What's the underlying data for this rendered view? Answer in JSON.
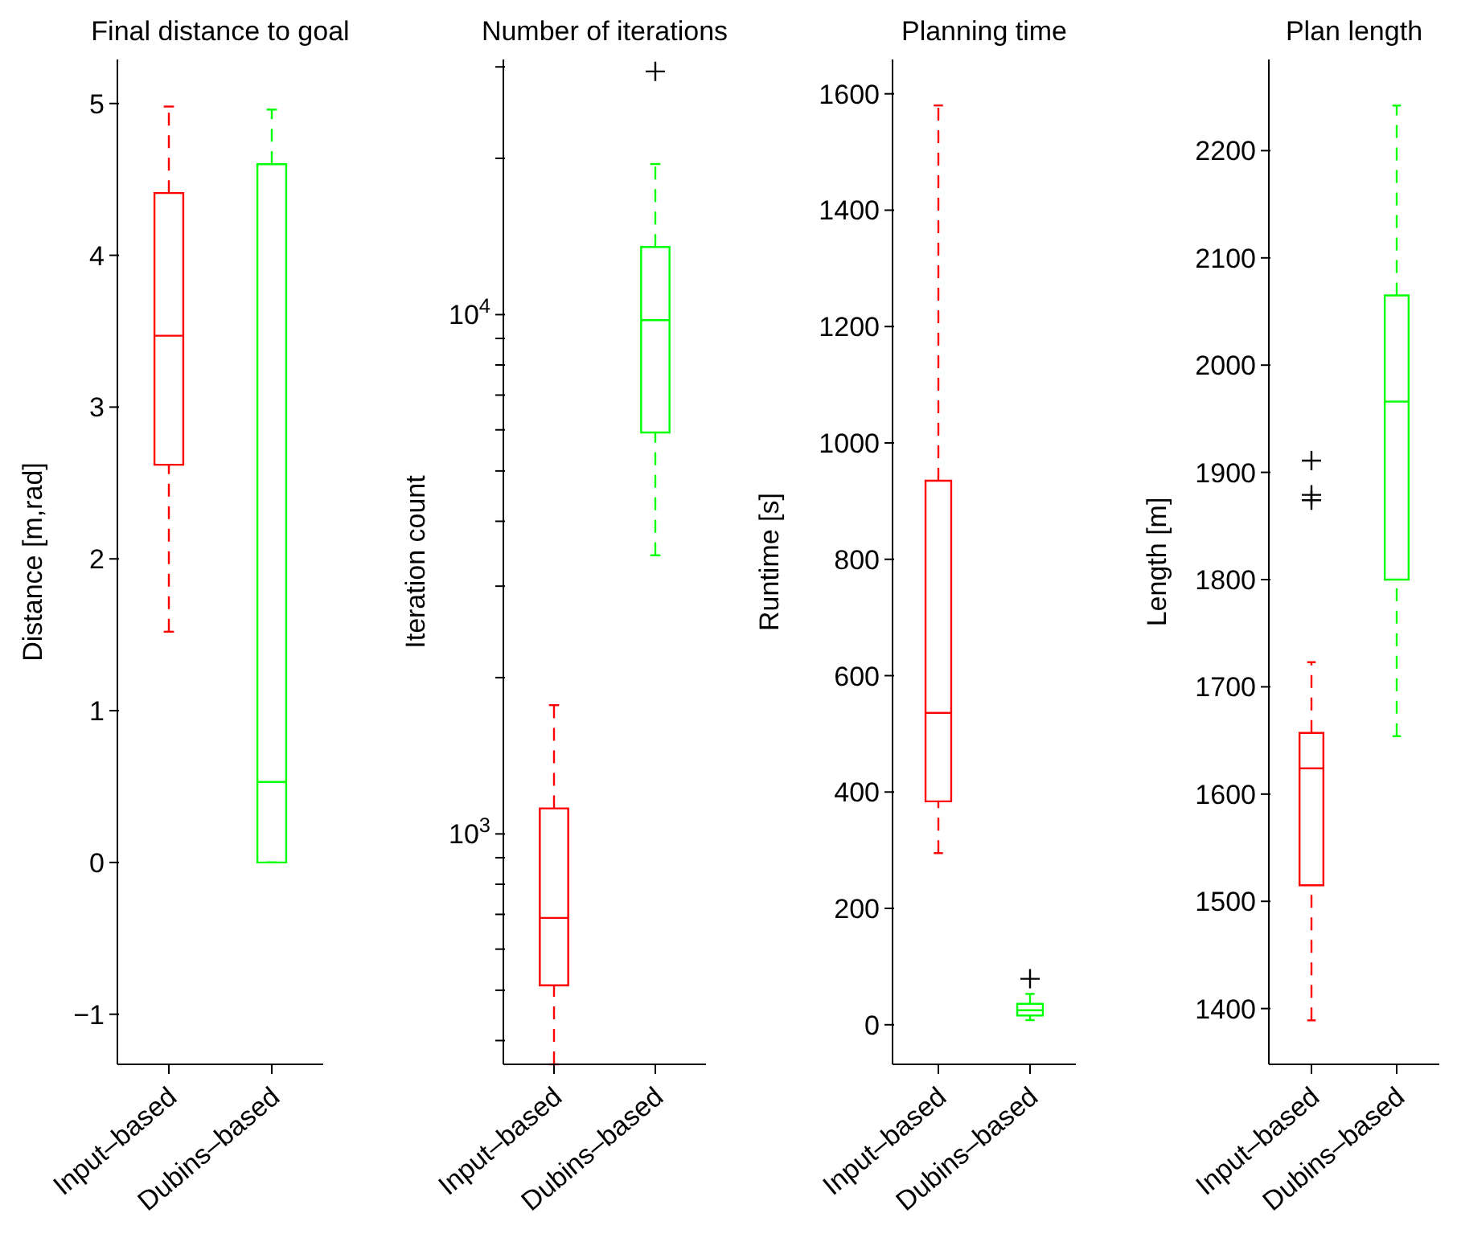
{
  "chart_data": [
    {
      "type": "box",
      "title": "Final distance to goal",
      "ylabel": "Distance [m,rad]",
      "categories": [
        "Input–based",
        "Dubins–based"
      ],
      "colors": [
        "#ff0000",
        "#00ff00"
      ],
      "line_style": "dashed",
      "ylim": [
        -1.33,
        5.29
      ],
      "yticks": [
        {
          "value": -1,
          "label": "−1"
        },
        0,
        1,
        2,
        3,
        4,
        5
      ],
      "boxes": [
        {
          "low": 1.52,
          "q1": 2.62,
          "median": 3.47,
          "q3": 4.41,
          "high": 4.98
        },
        {
          "low": 0,
          "q1": 0,
          "median": 0.53,
          "q3": 4.6,
          "high": 4.96
        }
      ]
    },
    {
      "type": "box",
      "title": "Number of iterations",
      "ylabel": "Iteration count",
      "categories": [
        "Input–based",
        "Dubins–based"
      ],
      "colors": [
        "#ff0000",
        "#00ff00"
      ],
      "line_style": "dashed",
      "marker": "cross",
      "log": true,
      "ylim": [
        360,
        31000
      ],
      "yticks": [
        {
          "value": 400,
          "label": null
        },
        {
          "value": 500,
          "label": null
        },
        {
          "value": 600,
          "label": null
        },
        {
          "value": 700,
          "label": null
        },
        {
          "value": 800,
          "label": null
        },
        {
          "value": 900,
          "label": null
        },
        {
          "value": 1000,
          "label": "10$^{3}$"
        },
        {
          "value": 2000,
          "label": null
        },
        {
          "value": 3000,
          "label": null
        },
        {
          "value": 4000,
          "label": null
        },
        {
          "value": 5000,
          "label": null
        },
        {
          "value": 6000,
          "label": null
        },
        {
          "value": 7000,
          "label": null
        },
        {
          "value": 8000,
          "label": null
        },
        {
          "value": 9000,
          "label": null
        },
        {
          "value": 10000,
          "label": "10$^{4}$"
        },
        {
          "value": 20000,
          "label": null
        },
        {
          "value": 30000,
          "label": null
        }
      ],
      "boxes": [
        {
          "low": 360,
          "q1": 511,
          "median": 689,
          "q3": 1120,
          "high": 1770
        },
        {
          "low": 3440,
          "q1": 5930,
          "median": 9760,
          "q3": 13500,
          "high": 19500,
          "outliers": [
            29400
          ]
        }
      ]
    },
    {
      "type": "box",
      "title": "Planning time",
      "ylabel": "Runtime [s]",
      "categories": [
        "Input–based",
        "Dubins–based"
      ],
      "colors": [
        "#ff0000",
        "#00ff00"
      ],
      "line_style": "dashed",
      "marker": "cross",
      "ylim": [
        -68,
        1659
      ],
      "yticks": [
        0,
        200,
        400,
        600,
        800,
        1000,
        1200,
        1400,
        1600
      ],
      "boxes": [
        {
          "low": 295,
          "q1": 384,
          "median": 536,
          "q3": 935,
          "high": 1580
        },
        {
          "low": 8,
          "q1": 16,
          "median": 25,
          "q3": 36,
          "high": 53,
          "outliers": [
            79
          ]
        }
      ]
    },
    {
      "type": "box",
      "title": "Plan length",
      "ylabel": "Length [m]",
      "categories": [
        "Input–based",
        "Dubins–based"
      ],
      "colors": [
        "#ff0000",
        "#00ff00"
      ],
      "line_style": "dashed",
      "marker": "cross",
      "ylim": [
        1348,
        2285
      ],
      "yticks": [
        1400,
        1500,
        1600,
        1700,
        1800,
        1900,
        2000,
        2100,
        2200
      ],
      "boxes": [
        {
          "low": 1389,
          "q1": 1515,
          "median": 1624,
          "q3": 1657,
          "high": 1723,
          "outliers": [
            1911,
            1879,
            1874
          ]
        },
        {
          "low": 1654,
          "q1": 1800,
          "median": 1966,
          "q3": 2065,
          "high": 2242
        }
      ]
    }
  ]
}
